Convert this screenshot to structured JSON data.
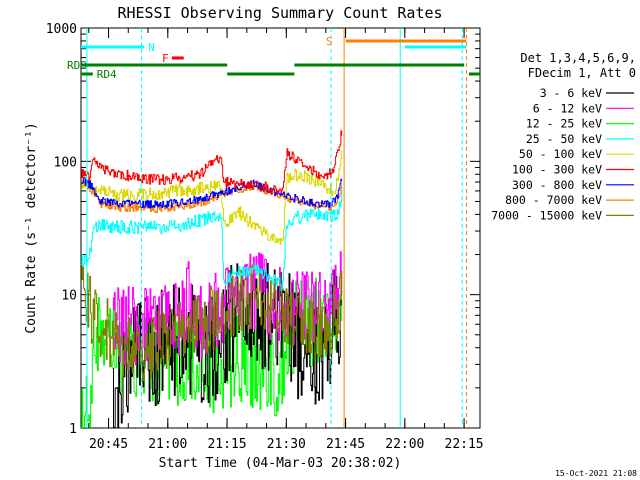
{
  "chart_data": {
    "type": "line",
    "title": "RHESSI Observing Summary Count Rates",
    "xlabel": "Start Time (04-Mar-03 20:38:02)",
    "ylabel": "Count Rate (s⁻¹ detector⁻¹)",
    "yscale": "log",
    "ylim": [
      1,
      1000
    ],
    "xlim_minutes": [
      0,
      101
    ],
    "x_tick_labels": [
      "20:45",
      "21:00",
      "21:15",
      "21:30",
      "21:45",
      "22:00",
      "22:15"
    ],
    "x_tick_minutes": [
      6.97,
      21.97,
      36.97,
      51.97,
      66.97,
      81.97,
      96.97
    ],
    "y_tick_labels": [
      "1",
      "10",
      "100",
      "1000"
    ],
    "y_tick_values": [
      1,
      10,
      100,
      1000
    ],
    "legend_header": [
      "Det 1,3,4,5,6,9,",
      "FDecim 1, Att 0"
    ],
    "series": [
      {
        "name": "3 - 6 keV",
        "color": "#000000",
        "x": [
          8,
          10,
          15,
          20,
          25,
          30,
          35,
          38,
          40,
          43,
          46,
          48,
          50,
          52,
          54,
          56,
          58,
          60,
          62,
          63.5,
          64.5,
          65.5,
          66
        ],
        "y": [
          1.1,
          2.5,
          3.5,
          4.0,
          4.5,
          4.0,
          4.5,
          6,
          7,
          8,
          7,
          6.5,
          6,
          6.5,
          5,
          4,
          3.2,
          3.0,
          3.5,
          5,
          7,
          9,
          14
        ]
      },
      {
        "name": "6 - 12 keV",
        "color": "#ff00ff",
        "x": [
          8,
          10,
          15,
          20,
          25,
          28,
          30,
          35,
          37,
          40,
          44,
          48,
          52,
          56,
          60,
          63,
          64.5,
          65.5,
          66
        ],
        "y": [
          5.5,
          6,
          5.5,
          6.5,
          7,
          10,
          6.5,
          8,
          8.5,
          10,
          11,
          9,
          8.5,
          8,
          7.5,
          7.5,
          9,
          14,
          22
        ]
      },
      {
        "name": "12 - 25 keV",
        "color": "#00ff00",
        "x": [
          0,
          2,
          3,
          5,
          10,
          15,
          20,
          25,
          30,
          35,
          37,
          40,
          45,
          50,
          52,
          55,
          60,
          63,
          65,
          66
        ],
        "y": [
          1.2,
          1.5,
          4,
          4.5,
          4,
          3.5,
          3.0,
          3.2,
          3.0,
          2.8,
          3.0,
          3.5,
          3.0,
          2.5,
          5,
          6,
          6.5,
          7,
          8,
          12
        ]
      },
      {
        "name": "25 - 50 keV",
        "color": "#00ffff",
        "x": [
          0,
          2,
          3,
          5,
          10,
          15,
          20,
          25,
          30,
          34,
          35.5,
          36,
          40,
          45,
          50,
          51,
          52,
          55,
          60,
          63,
          65,
          66
        ],
        "y": [
          18,
          18,
          33,
          33,
          32,
          32,
          32,
          33,
          36,
          39,
          40,
          13,
          15,
          15,
          12,
          12,
          35,
          38,
          40,
          38,
          40,
          55
        ]
      },
      {
        "name": "50 - 100 keV",
        "color": "#d8d800",
        "x": [
          0,
          2,
          3,
          5,
          10,
          15,
          20,
          25,
          30,
          34,
          35.5,
          36,
          38,
          40,
          45,
          50,
          51,
          52,
          55,
          60,
          62,
          64,
          65,
          66
        ],
        "y": [
          68,
          66,
          63,
          60,
          55,
          56,
          57,
          60,
          62,
          64,
          63,
          33,
          38,
          42,
          30,
          25,
          25,
          75,
          80,
          70,
          62,
          62,
          70,
          110
        ]
      },
      {
        "name": "100 - 300 keV",
        "color": "#ff0000",
        "x": [
          0,
          2,
          3,
          5,
          10,
          15,
          20,
          25,
          30,
          33,
          35.5,
          36,
          40,
          45,
          50,
          51,
          52,
          55,
          60,
          62,
          64,
          65,
          66
        ],
        "y": [
          80,
          75,
          100,
          90,
          80,
          75,
          72,
          75,
          80,
          98,
          110,
          70,
          68,
          66,
          60,
          58,
          115,
          100,
          80,
          78,
          85,
          120,
          170
        ]
      },
      {
        "name": "300 - 800 keV",
        "color": "#0000ff",
        "x": [
          0,
          2,
          5,
          10,
          15,
          20,
          25,
          30,
          33,
          36,
          40,
          44,
          48,
          51,
          52,
          55,
          60,
          63,
          65,
          66
        ],
        "y": [
          72,
          68,
          50,
          48,
          48,
          47,
          49,
          52,
          55,
          58,
          65,
          68,
          60,
          56,
          55,
          52,
          48,
          47,
          55,
          75
        ]
      },
      {
        "name": "800 - 7000 keV",
        "color": "#ff8000",
        "x": [
          0,
          2,
          5,
          10,
          15,
          20,
          25,
          30,
          33,
          36,
          40,
          44,
          48,
          51,
          52,
          55,
          60,
          63,
          65,
          66
        ],
        "y": [
          70,
          65,
          48,
          45,
          45,
          44,
          46,
          49,
          52,
          56,
          62,
          65,
          58,
          54,
          53,
          50,
          46,
          45,
          52,
          70
        ]
      },
      {
        "name": "7000 - 15000 keV",
        "color": "#808000",
        "x": [
          0,
          2,
          5,
          10,
          15,
          20,
          25,
          30,
          35,
          40,
          43,
          45,
          50,
          55,
          60,
          63,
          65,
          66
        ],
        "y": [
          11,
          8,
          6,
          4,
          3.8,
          4.5,
          5,
          6,
          7,
          8.5,
          9.5,
          9,
          7,
          6,
          5.5,
          6,
          8,
          12
        ]
      }
    ],
    "annotations": [
      {
        "label": "N",
        "color": "#00ffff"
      },
      {
        "label": "F",
        "color": "#ff0000"
      },
      {
        "label": "S",
        "color": "#ff8000"
      },
      {
        "label": "RD9",
        "color": "#008000"
      },
      {
        "label": "RD4",
        "color": "#008000"
      }
    ],
    "timestamp": "15-Oct-2021 21:08"
  }
}
